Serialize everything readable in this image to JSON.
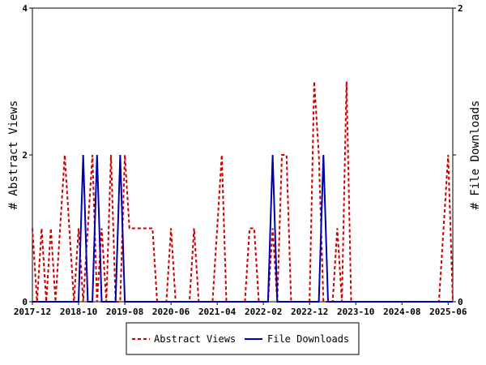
{
  "chart_data": {
    "type": "line",
    "title": "",
    "ylabel_left": "# Abstract Views",
    "ylabel_right": "# File Downloads",
    "ylim_left": [
      0,
      4
    ],
    "ylim_right": [
      0,
      2
    ],
    "yticks_left": [
      "0",
      "2",
      "4"
    ],
    "yticks_right": [
      "0",
      "1",
      "2"
    ],
    "x_range": [
      "2017-12",
      "2025-07"
    ],
    "xticks": [
      "2017-12",
      "2018-10",
      "2019-08",
      "2020-06",
      "2021-04",
      "2022-02",
      "2022-12",
      "2023-10",
      "2024-08",
      "2025-06"
    ],
    "grid": false,
    "legend_position": "bottom",
    "series": [
      {
        "name": "Abstract Views",
        "color": "#cc0000",
        "dash": "dashed",
        "axis": "left",
        "points": [
          [
            "2017-12",
            1
          ],
          [
            "2018-01",
            0
          ],
          [
            "2018-02",
            1
          ],
          [
            "2018-03",
            0
          ],
          [
            "2018-04",
            1
          ],
          [
            "2018-05",
            0
          ],
          [
            "2018-06",
            1
          ],
          [
            "2018-07",
            2
          ],
          [
            "2018-08",
            1
          ],
          [
            "2018-09",
            0
          ],
          [
            "2018-10",
            1
          ],
          [
            "2018-11",
            0
          ],
          [
            "2018-12",
            1
          ],
          [
            "2019-01",
            2
          ],
          [
            "2019-02",
            0
          ],
          [
            "2019-03",
            1
          ],
          [
            "2019-04",
            0
          ],
          [
            "2019-05",
            2
          ],
          [
            "2019-06",
            0
          ],
          [
            "2019-07",
            0
          ],
          [
            "2019-08",
            2
          ],
          [
            "2019-09",
            1
          ],
          [
            "2019-10",
            1
          ],
          [
            "2019-11",
            1
          ],
          [
            "2019-12",
            1
          ],
          [
            "2020-01",
            1
          ],
          [
            "2020-02",
            1
          ],
          [
            "2020-03",
            0
          ],
          [
            "2020-04",
            0
          ],
          [
            "2020-05",
            0
          ],
          [
            "2020-06",
            1
          ],
          [
            "2020-07",
            0
          ],
          [
            "2020-08",
            0
          ],
          [
            "2020-09",
            0
          ],
          [
            "2020-10",
            0
          ],
          [
            "2020-11",
            1
          ],
          [
            "2020-12",
            0
          ],
          [
            "2021-01",
            0
          ],
          [
            "2021-02",
            0
          ],
          [
            "2021-03",
            0
          ],
          [
            "2021-04",
            1
          ],
          [
            "2021-05",
            2
          ],
          [
            "2021-06",
            0
          ],
          [
            "2021-07",
            0
          ],
          [
            "2021-08",
            0
          ],
          [
            "2021-09",
            0
          ],
          [
            "2021-10",
            0
          ],
          [
            "2021-11",
            1
          ],
          [
            "2021-12",
            1
          ],
          [
            "2022-01",
            0
          ],
          [
            "2022-02",
            0
          ],
          [
            "2022-03",
            0
          ],
          [
            "2022-04",
            1
          ],
          [
            "2022-05",
            0
          ],
          [
            "2022-06",
            2
          ],
          [
            "2022-07",
            2
          ],
          [
            "2022-08",
            0
          ],
          [
            "2022-09",
            0
          ],
          [
            "2022-10",
            0
          ],
          [
            "2022-11",
            0
          ],
          [
            "2022-12",
            0
          ],
          [
            "2023-01",
            3
          ],
          [
            "2023-02",
            2
          ],
          [
            "2023-03",
            0
          ],
          [
            "2023-04",
            0
          ],
          [
            "2023-05",
            0
          ],
          [
            "2023-06",
            1
          ],
          [
            "2023-07",
            0
          ],
          [
            "2023-08",
            3
          ],
          [
            "2023-09",
            0
          ],
          [
            "2023-10",
            0
          ],
          [
            "2023-11",
            0
          ],
          [
            "2023-12",
            0
          ],
          [
            "2024-01",
            0
          ],
          [
            "2024-02",
            0
          ],
          [
            "2024-03",
            0
          ],
          [
            "2024-04",
            0
          ],
          [
            "2024-05",
            0
          ],
          [
            "2024-06",
            0
          ],
          [
            "2024-07",
            0
          ],
          [
            "2024-08",
            0
          ],
          [
            "2024-09",
            0
          ],
          [
            "2024-10",
            0
          ],
          [
            "2024-11",
            0
          ],
          [
            "2024-12",
            0
          ],
          [
            "2025-01",
            0
          ],
          [
            "2025-02",
            0
          ],
          [
            "2025-03",
            0
          ],
          [
            "2025-04",
            0
          ],
          [
            "2025-05",
            1
          ],
          [
            "2025-06",
            2
          ],
          [
            "2025-07",
            0
          ]
        ]
      },
      {
        "name": "File Downloads",
        "color": "#0000aa",
        "dash": "solid",
        "axis": "right",
        "points": [
          [
            "2017-12",
            0
          ],
          [
            "2018-01",
            0
          ],
          [
            "2018-02",
            0
          ],
          [
            "2018-03",
            0
          ],
          [
            "2018-04",
            0
          ],
          [
            "2018-05",
            0
          ],
          [
            "2018-06",
            0
          ],
          [
            "2018-07",
            0
          ],
          [
            "2018-08",
            0
          ],
          [
            "2018-09",
            0
          ],
          [
            "2018-10",
            0
          ],
          [
            "2018-11",
            1
          ],
          [
            "2018-12",
            0
          ],
          [
            "2019-01",
            0
          ],
          [
            "2019-02",
            1
          ],
          [
            "2019-03",
            0
          ],
          [
            "2019-04",
            0
          ],
          [
            "2019-05",
            0
          ],
          [
            "2019-06",
            0
          ],
          [
            "2019-07",
            1
          ],
          [
            "2019-08",
            0
          ],
          [
            "2019-09",
            0
          ],
          [
            "2019-10",
            0
          ],
          [
            "2019-11",
            0
          ],
          [
            "2019-12",
            0
          ],
          [
            "2020-01",
            0
          ],
          [
            "2020-02",
            0
          ],
          [
            "2020-03",
            0
          ],
          [
            "2020-04",
            0
          ],
          [
            "2020-05",
            0
          ],
          [
            "2020-06",
            0
          ],
          [
            "2020-07",
            0
          ],
          [
            "2020-08",
            0
          ],
          [
            "2020-09",
            0
          ],
          [
            "2020-10",
            0
          ],
          [
            "2020-11",
            0
          ],
          [
            "2020-12",
            0
          ],
          [
            "2021-01",
            0
          ],
          [
            "2021-02",
            0
          ],
          [
            "2021-03",
            0
          ],
          [
            "2021-04",
            0
          ],
          [
            "2021-05",
            0
          ],
          [
            "2021-06",
            0
          ],
          [
            "2021-07",
            0
          ],
          [
            "2021-08",
            0
          ],
          [
            "2021-09",
            0
          ],
          [
            "2021-10",
            0
          ],
          [
            "2021-11",
            0
          ],
          [
            "2021-12",
            0
          ],
          [
            "2022-01",
            0
          ],
          [
            "2022-02",
            0
          ],
          [
            "2022-03",
            0
          ],
          [
            "2022-04",
            1
          ],
          [
            "2022-05",
            0
          ],
          [
            "2022-06",
            0
          ],
          [
            "2022-07",
            0
          ],
          [
            "2022-08",
            0
          ],
          [
            "2022-09",
            0
          ],
          [
            "2022-10",
            0
          ],
          [
            "2022-11",
            0
          ],
          [
            "2022-12",
            0
          ],
          [
            "2023-01",
            0
          ],
          [
            "2023-02",
            0
          ],
          [
            "2023-03",
            1
          ],
          [
            "2023-04",
            0
          ],
          [
            "2023-05",
            0
          ],
          [
            "2023-06",
            0
          ],
          [
            "2023-07",
            0
          ],
          [
            "2023-08",
            0
          ],
          [
            "2023-09",
            0
          ],
          [
            "2023-10",
            0
          ],
          [
            "2023-11",
            0
          ],
          [
            "2023-12",
            0
          ],
          [
            "2024-01",
            0
          ],
          [
            "2024-02",
            0
          ],
          [
            "2024-03",
            0
          ],
          [
            "2024-04",
            0
          ],
          [
            "2024-05",
            0
          ],
          [
            "2024-06",
            0
          ],
          [
            "2024-07",
            0
          ],
          [
            "2024-08",
            0
          ],
          [
            "2024-09",
            0
          ],
          [
            "2024-10",
            0
          ],
          [
            "2024-11",
            0
          ],
          [
            "2024-12",
            0
          ],
          [
            "2025-01",
            0
          ],
          [
            "2025-02",
            0
          ],
          [
            "2025-03",
            0
          ],
          [
            "2025-04",
            0
          ],
          [
            "2025-05",
            0
          ],
          [
            "2025-06",
            0
          ],
          [
            "2025-07",
            0
          ]
        ]
      }
    ]
  }
}
